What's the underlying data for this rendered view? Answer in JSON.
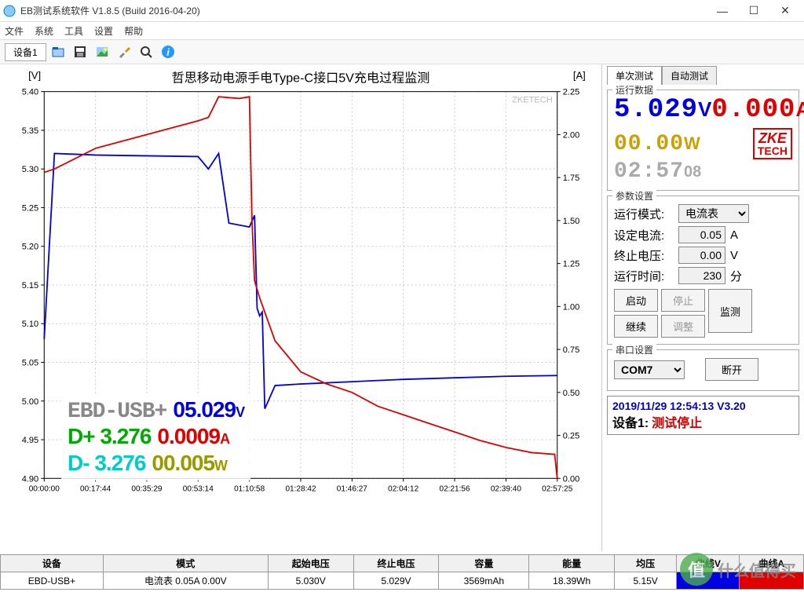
{
  "window": {
    "title": "EB测试系统软件 V1.8.5 (Build 2016-04-20)"
  },
  "menu": {
    "file": "文件",
    "system": "系统",
    "tools": "工具",
    "settings": "设置",
    "help": "帮助"
  },
  "toolbar": {
    "device_tab": "设备1"
  },
  "chart": {
    "title": "哲思移动电源手电Type-C接口5V充电过程监测",
    "y_left_label": "[V]",
    "y_right_label": "[A]",
    "watermark": "ZKETECH",
    "y_left": {
      "min": 4.9,
      "max": 5.4,
      "step": 0.05
    },
    "y_right": {
      "min": 0.0,
      "max": 2.25,
      "step": 0.25
    },
    "x_ticks": [
      "00:00:00",
      "00:17:44",
      "00:35:29",
      "00:53:14",
      "01:10:58",
      "01:28:42",
      "01:46:27",
      "02:04:12",
      "02:21:56",
      "02:39:40",
      "02:57:25"
    ],
    "colors": {
      "voltage": "#0000e0",
      "current": "#e00000",
      "grid": "#cccccc",
      "axis": "#000000",
      "background": "#ffffff"
    },
    "voltage_series": [
      [
        0,
        5.08
      ],
      [
        0.2,
        5.32
      ],
      [
        1,
        5.318
      ],
      [
        2,
        5.317
      ],
      [
        3,
        5.316
      ],
      [
        3.2,
        5.3
      ],
      [
        3.4,
        5.32
      ],
      [
        3.6,
        5.23
      ],
      [
        4.0,
        5.225
      ],
      [
        4.1,
        5.24
      ],
      [
        4.15,
        5.12
      ],
      [
        4.2,
        5.11
      ],
      [
        4.25,
        5.115
      ],
      [
        4.3,
        4.99
      ],
      [
        4.5,
        5.02
      ],
      [
        5.0,
        5.022
      ],
      [
        6.0,
        5.025
      ],
      [
        7.0,
        5.028
      ],
      [
        8.0,
        5.03
      ],
      [
        9.0,
        5.032
      ],
      [
        10.0,
        5.033
      ]
    ],
    "current_series": [
      [
        0,
        1.78
      ],
      [
        0.2,
        1.8
      ],
      [
        1.0,
        1.92
      ],
      [
        2.0,
        2.0
      ],
      [
        3.0,
        2.08
      ],
      [
        3.2,
        2.1
      ],
      [
        3.4,
        2.22
      ],
      [
        3.8,
        2.21
      ],
      [
        4.0,
        2.22
      ],
      [
        4.05,
        1.5
      ],
      [
        4.1,
        1.15
      ],
      [
        4.2,
        1.05
      ],
      [
        4.5,
        0.8
      ],
      [
        5.0,
        0.62
      ],
      [
        5.5,
        0.55
      ],
      [
        6.0,
        0.5
      ],
      [
        6.5,
        0.42
      ],
      [
        7.0,
        0.37
      ],
      [
        7.5,
        0.32
      ],
      [
        8.0,
        0.27
      ],
      [
        8.5,
        0.22
      ],
      [
        9.0,
        0.18
      ],
      [
        9.5,
        0.15
      ],
      [
        9.95,
        0.14
      ],
      [
        10.0,
        0.0
      ]
    ],
    "overlay": {
      "device": "EBD-USB+",
      "voltage": "05.029",
      "voltage_unit": "V",
      "voltage_color": "#0000e0",
      "current": "0.0009",
      "current_unit": "A",
      "current_color": "#e00000",
      "power": "00.005",
      "power_unit": "W",
      "power_color": "#999900",
      "dp_label": "D+",
      "dp_value": "3.276",
      "dp_color": "#00aa00",
      "dm_label": "D-",
      "dm_value": "3.276",
      "dm_color": "#00cccc",
      "device_color": "#888888"
    }
  },
  "run_tabs": {
    "single": "单次测试",
    "auto": "自动测试"
  },
  "run_data": {
    "legend": "运行数据",
    "voltage": "5.029",
    "voltage_unit": "V",
    "voltage_color": "#0000e0",
    "current": "0.000",
    "current_unit": "A",
    "current_color": "#e00000",
    "power": "00.00",
    "power_unit": "W",
    "power_color": "#cca000",
    "time": "02:57",
    "time_sec": "08",
    "time_color": "#aaaaaa",
    "logo_top": "ZKE",
    "logo_bottom": "TECH",
    "logo_color": "#e00000"
  },
  "param": {
    "legend": "参数设置",
    "mode_label": "运行模式:",
    "mode_value": "电流表",
    "set_current_label": "设定电流:",
    "set_current_value": "0.05",
    "set_current_unit": "A",
    "cutoff_v_label": "终止电压:",
    "cutoff_v_value": "0.00",
    "cutoff_v_unit": "V",
    "runtime_label": "运行时间:",
    "runtime_value": "230",
    "runtime_unit": "分",
    "btn_start": "启动",
    "btn_stop": "停止",
    "btn_continue": "继续",
    "btn_adjust": "调整",
    "btn_monitor": "监测"
  },
  "serial": {
    "legend": "串口设置",
    "port": "COM7",
    "btn_disconnect": "断开"
  },
  "status": {
    "timestamp": "2019/11/29 12:54:13  V3.20",
    "device_label": "设备1:",
    "message": "测试停止"
  },
  "table": {
    "headers": [
      "设备",
      "模式",
      "起始电压",
      "终止电压",
      "容量",
      "能量",
      "均压",
      "曲线V",
      "曲线A"
    ],
    "row": {
      "device": "EBD-USB+",
      "mode": "电流表  0.05A  0.00V",
      "start_v": "5.030V",
      "end_v": "5.029V",
      "capacity": "3569mAh",
      "energy": "18.39Wh",
      "avg_v": "5.15V"
    },
    "curve_v_color": "#0000e0",
    "curve_a_color": "#e00000"
  },
  "watermark": {
    "text": "什么值得买",
    "char": "值"
  }
}
